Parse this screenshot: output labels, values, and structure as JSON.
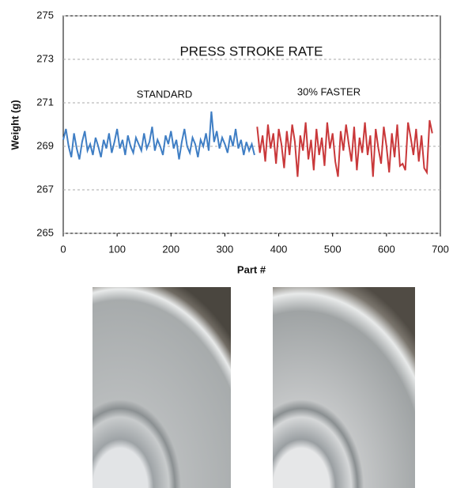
{
  "chart_data": {
    "type": "line",
    "title": "PRESS STROKE RATE",
    "x_label": "Part #",
    "y_label": "Weight (g)",
    "xlim": [
      0,
      700
    ],
    "xticks": [
      0,
      100,
      200,
      300,
      400,
      500,
      600,
      700
    ],
    "ylim": [
      265,
      275
    ],
    "yticks": [
      265,
      267,
      269,
      271,
      273,
      275
    ],
    "grid": true,
    "series": [
      {
        "name": "STANDARD",
        "color": "#3f7ec4",
        "x": [
          0,
          5,
          10,
          15,
          20,
          25,
          30,
          35,
          40,
          45,
          50,
          55,
          60,
          65,
          70,
          75,
          80,
          85,
          90,
          95,
          100,
          105,
          110,
          115,
          120,
          125,
          130,
          135,
          140,
          145,
          150,
          155,
          160,
          165,
          170,
          175,
          180,
          185,
          190,
          195,
          200,
          205,
          210,
          215,
          220,
          225,
          230,
          235,
          240,
          245,
          250,
          255,
          260,
          265,
          270,
          275,
          280,
          285,
          290,
          295,
          300,
          305,
          310,
          315,
          320,
          325,
          330,
          335,
          340,
          345,
          350,
          355
        ],
        "values": [
          269.3,
          269.8,
          269.0,
          268.5,
          269.6,
          268.9,
          268.4,
          269.2,
          269.7,
          268.8,
          269.1,
          268.6,
          269.4,
          269.0,
          268.5,
          269.3,
          268.9,
          269.6,
          268.7,
          269.2,
          269.8,
          268.9,
          269.3,
          268.6,
          269.5,
          269.0,
          268.7,
          269.4,
          269.1,
          268.8,
          269.6,
          268.9,
          269.2,
          269.9,
          268.8,
          269.3,
          269.0,
          268.6,
          269.5,
          269.1,
          269.7,
          268.9,
          269.3,
          268.4,
          269.2,
          269.8,
          269.0,
          268.7,
          269.4,
          269.1,
          268.5,
          269.3,
          269.0,
          269.6,
          268.8,
          270.6,
          269.2,
          269.7,
          268.9,
          269.4,
          269.1,
          268.7,
          269.5,
          269.0,
          269.8,
          268.9,
          269.3,
          268.6,
          269.2,
          268.8,
          269.1,
          268.6
        ]
      },
      {
        "name": "30% FASTER",
        "color": "#c9383a",
        "x": [
          360,
          365,
          370,
          375,
          380,
          385,
          390,
          395,
          400,
          405,
          410,
          415,
          420,
          425,
          430,
          435,
          440,
          445,
          450,
          455,
          460,
          465,
          470,
          475,
          480,
          485,
          490,
          495,
          500,
          505,
          510,
          515,
          520,
          525,
          530,
          535,
          540,
          545,
          550,
          555,
          560,
          565,
          570,
          575,
          580,
          585,
          590,
          595,
          600,
          605,
          610,
          615,
          620,
          625,
          630,
          635,
          640,
          645,
          650,
          655,
          660,
          665,
          670,
          675,
          680,
          685
        ],
        "values": [
          269.9,
          268.7,
          269.5,
          268.3,
          270.0,
          268.9,
          269.6,
          268.2,
          269.8,
          269.1,
          268.0,
          269.7,
          268.6,
          270.0,
          269.2,
          267.6,
          269.5,
          268.8,
          270.1,
          268.4,
          269.3,
          267.9,
          269.8,
          268.6,
          269.4,
          268.1,
          270.1,
          268.9,
          269.6,
          268.3,
          267.6,
          269.7,
          268.8,
          270.0,
          269.1,
          268.3,
          269.9,
          267.9,
          269.4,
          268.7,
          270.1,
          268.6,
          269.5,
          267.6,
          269.8,
          268.9,
          268.2,
          269.9,
          269.0,
          267.8,
          269.6,
          268.5,
          270.0,
          268.1,
          268.2,
          267.9,
          270.1,
          269.4,
          268.6,
          269.8,
          268.3,
          269.5,
          268.0,
          267.8,
          270.2,
          269.6
        ]
      }
    ]
  }
}
